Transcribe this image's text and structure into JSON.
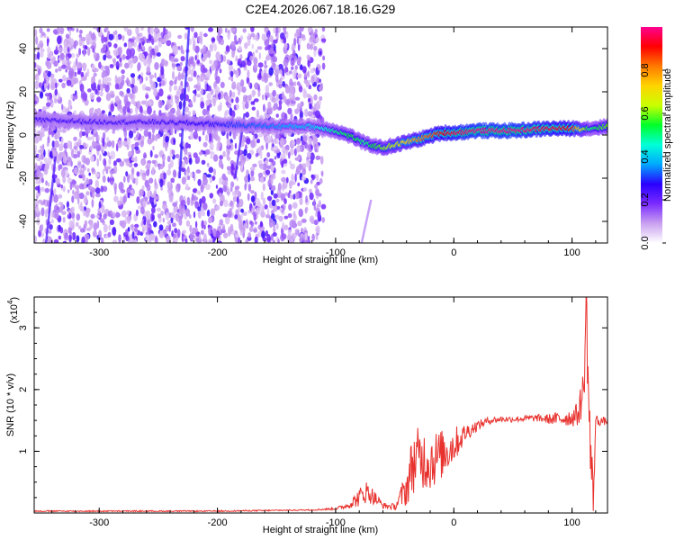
{
  "figure": {
    "title": "C2E4.2026.067.18.16.G29"
  },
  "chart_data": [
    {
      "type": "heatmap",
      "name": "spectrogram",
      "xlabel": "Height of straight line (km)",
      "ylabel": "Frequency (Hz)",
      "xlim": [
        -355,
        130
      ],
      "ylim": [
        -50,
        50
      ],
      "xticks": [
        -300,
        -200,
        -100,
        0,
        100
      ],
      "yticks": [
        -40,
        -20,
        0,
        20,
        40
      ],
      "colorbar": {
        "label": "Normalized spectral amplitude",
        "range": [
          0.0,
          1.0
        ],
        "ticks": [
          "0.0",
          "0.2",
          "0.4",
          "0.6",
          "0.8"
        ],
        "tick_values": [
          0.0,
          0.2,
          0.4,
          0.6,
          0.8
        ],
        "colors": [
          "#ffffff",
          "#c9a0f0",
          "#7a2bff",
          "#2a00ff",
          "#00a8ff",
          "#00ffd8",
          "#00ff2a",
          "#c8ff00",
          "#ffd400",
          "#ff7a00",
          "#ff0000",
          "#ff0090"
        ]
      },
      "ridge": {
        "description_points_x": [
          -355,
          -300,
          -250,
          -200,
          -150,
          -120,
          -100,
          -85,
          -75,
          -60,
          -45,
          -30,
          -10,
          0,
          20,
          50,
          80,
          100,
          115,
          130
        ],
        "description_points_y": [
          7,
          6,
          6,
          5,
          4,
          4,
          2,
          -1,
          -4,
          -6,
          -4,
          -2,
          1,
          1,
          2,
          2,
          3,
          3,
          3,
          4
        ],
        "amplitude": [
          0.25,
          0.25,
          0.25,
          0.28,
          0.35,
          0.4,
          0.5,
          0.55,
          0.5,
          0.6,
          0.7,
          0.8,
          0.9,
          0.95,
          1.0,
          1.0,
          0.95,
          0.9,
          0.5,
          0.6
        ]
      },
      "noise_region_x": [
        -355,
        -110
      ]
    },
    {
      "type": "line",
      "name": "snr",
      "xlabel": "Height of straight line (km)",
      "ylabel": "SNR (10 * v/v)",
      "yscale_label": "(x10",
      "yscale_exponent": "4",
      "xlim": [
        -355,
        130
      ],
      "ylim": [
        0,
        3.5
      ],
      "xticks": [
        -300,
        -200,
        -100,
        0,
        100
      ],
      "yticks": [
        1,
        2,
        3
      ],
      "color": "#e8322e",
      "series_envelope": {
        "x": [
          -355,
          -300,
          -200,
          -120,
          -100,
          -90,
          -80,
          -75,
          -70,
          -60,
          -50,
          -40,
          -35,
          -30,
          -20,
          -10,
          0,
          10,
          20,
          30,
          40,
          50,
          60,
          70,
          80,
          90,
          100,
          105,
          110,
          112,
          115,
          118,
          120,
          130
        ],
        "y": [
          0.03,
          0.03,
          0.03,
          0.05,
          0.07,
          0.12,
          0.25,
          0.35,
          0.3,
          0.12,
          0.1,
          0.4,
          0.8,
          0.9,
          0.85,
          0.95,
          1.1,
          1.3,
          1.42,
          1.5,
          1.52,
          1.52,
          1.53,
          1.54,
          1.52,
          1.53,
          1.55,
          1.6,
          2.0,
          3.4,
          1.2,
          0.2,
          1.5,
          1.48
        ],
        "noise": [
          0.0,
          0.0,
          0.0,
          0.01,
          0.02,
          0.05,
          0.15,
          0.2,
          0.15,
          0.05,
          0.05,
          0.3,
          0.5,
          0.5,
          0.5,
          0.4,
          0.3,
          0.15,
          0.08,
          0.06,
          0.05,
          0.05,
          0.05,
          0.06,
          0.08,
          0.12,
          0.15,
          0.2,
          0.4,
          0.5,
          0.8,
          0.3,
          0.1,
          0.05
        ]
      }
    }
  ]
}
